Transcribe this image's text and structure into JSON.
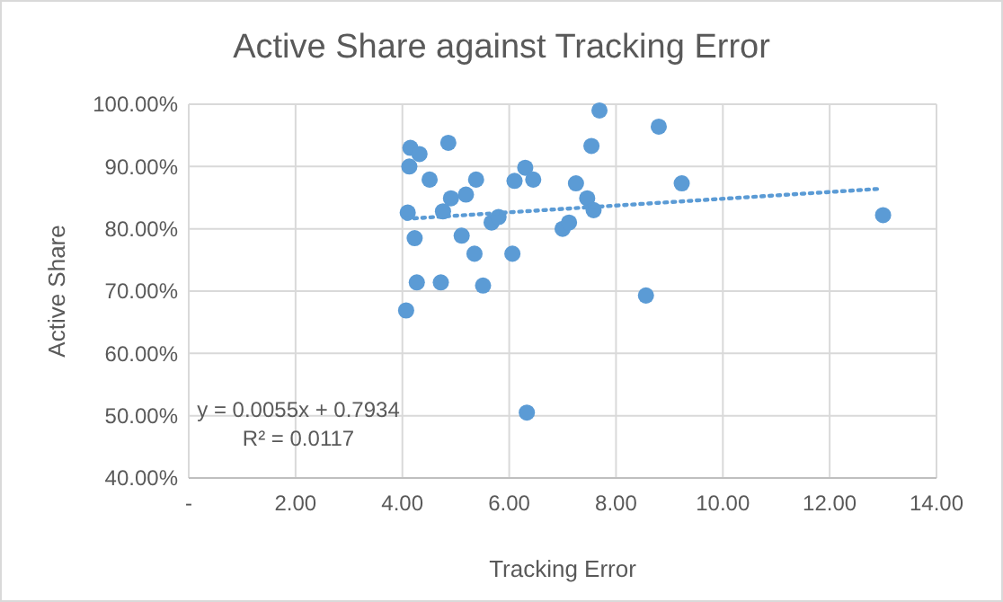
{
  "chart_data": {
    "type": "scatter",
    "title": "Active Share against Tracking Error",
    "xlabel": "Tracking Error",
    "ylabel": "Active Share",
    "xlim": [
      0,
      14
    ],
    "xticks": [
      {
        "value": 0,
        "label": "-"
      },
      {
        "value": 2,
        "label": "2.00"
      },
      {
        "value": 4,
        "label": "4.00"
      },
      {
        "value": 6,
        "label": "6.00"
      },
      {
        "value": 8,
        "label": "8.00"
      },
      {
        "value": 10,
        "label": "10.00"
      },
      {
        "value": 12,
        "label": "12.00"
      },
      {
        "value": 14,
        "label": "14.00"
      }
    ],
    "ylim": [
      40,
      100
    ],
    "yticks": [
      {
        "value": 40,
        "label": "40.00%"
      },
      {
        "value": 50,
        "label": "50.00%"
      },
      {
        "value": 60,
        "label": "60.00%"
      },
      {
        "value": 70,
        "label": "70.00%"
      },
      {
        "value": 80,
        "label": "80.00%"
      },
      {
        "value": 90,
        "label": "90.00%"
      },
      {
        "value": 100,
        "label": "100.00%"
      }
    ],
    "grid": true,
    "series": [
      {
        "color": "#5b9bd5",
        "marker": "circle",
        "x": [
          4.15,
          4.32,
          4.13,
          4.86,
          4.51,
          4.91,
          5.19,
          5.38,
          4.1,
          4.76,
          4.23,
          5.11,
          5.35,
          4.27,
          4.72,
          5.51,
          4.07,
          5.67,
          5.8,
          6.06,
          6.1,
          6.3,
          6.45,
          6.33,
          7.69,
          8.8,
          7.54,
          7.25,
          9.23,
          7.46,
          7.58,
          7.0,
          7.12,
          8.56,
          13.0
        ],
        "values": [
          93.0,
          92.0,
          90.0,
          93.8,
          87.9,
          84.9,
          85.5,
          87.9,
          82.6,
          82.8,
          78.5,
          78.9,
          76.0,
          71.4,
          71.4,
          70.9,
          66.9,
          81.0,
          81.9,
          76.0,
          87.7,
          89.8,
          87.9,
          50.5,
          99.0,
          96.4,
          93.3,
          87.3,
          87.3,
          84.9,
          83.0,
          80.0,
          81.0,
          69.3,
          82.2
        ]
      },
      {
        "type": "line",
        "color": "#5b9bd5",
        "line_style": "dotted",
        "x": [
          4.07,
          12.9
        ],
        "values": [
          81.6,
          86.4
        ]
      }
    ],
    "annotations": [
      "y = 0.0055x + 0.7934",
      "R² = 0.0117"
    ]
  }
}
